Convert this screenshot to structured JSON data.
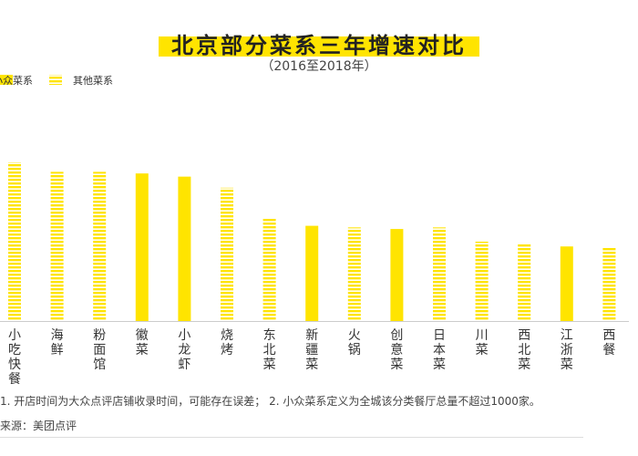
{
  "title": "北京部分菜系三年增速对比",
  "subtitle": "（2016至2018年）",
  "legend": [
    {
      "label": "小众菜系",
      "style": "solid",
      "color": "#ffe400"
    },
    {
      "label": "其他菜系",
      "style": "striped",
      "color": "#ffe400"
    }
  ],
  "footnote": "1. 开店时间为大众点评店铺收录时间，可能存在误差；  2. 小众菜系定义为全城该分类餐厅总量不超过1000家。",
  "source": "来源：美团点评",
  "chart_data": {
    "type": "bar",
    "title": "北京部分菜系三年增速对比",
    "subtitle": "（2016至2018年）",
    "categories": [
      "小吃快餐",
      "海鲜",
      "粉面馆",
      "徽菜",
      "小龙虾",
      "烧烤",
      "东北菜",
      "新疆菜",
      "火锅",
      "创意菜",
      "日本菜",
      "川菜",
      "西北菜",
      "江浙菜",
      "西餐"
    ],
    "values": [
      100,
      94,
      94,
      93,
      91,
      84,
      65,
      60,
      59,
      58,
      59,
      50,
      49,
      47,
      46
    ],
    "group": [
      "其他菜系",
      "其他菜系",
      "其他菜系",
      "小众菜系",
      "小众菜系",
      "其他菜系",
      "其他菜系",
      "小众菜系",
      "其他菜系",
      "小众菜系",
      "其他菜系",
      "其他菜系",
      "其他菜系",
      "小众菜系",
      "其他菜系"
    ],
    "ylim": [
      0,
      100
    ],
    "axis_labels_shown": false,
    "grid": false,
    "legend_position": "top-left",
    "colors": {
      "bar": "#ffe400",
      "axis": "#cccccc"
    }
  }
}
